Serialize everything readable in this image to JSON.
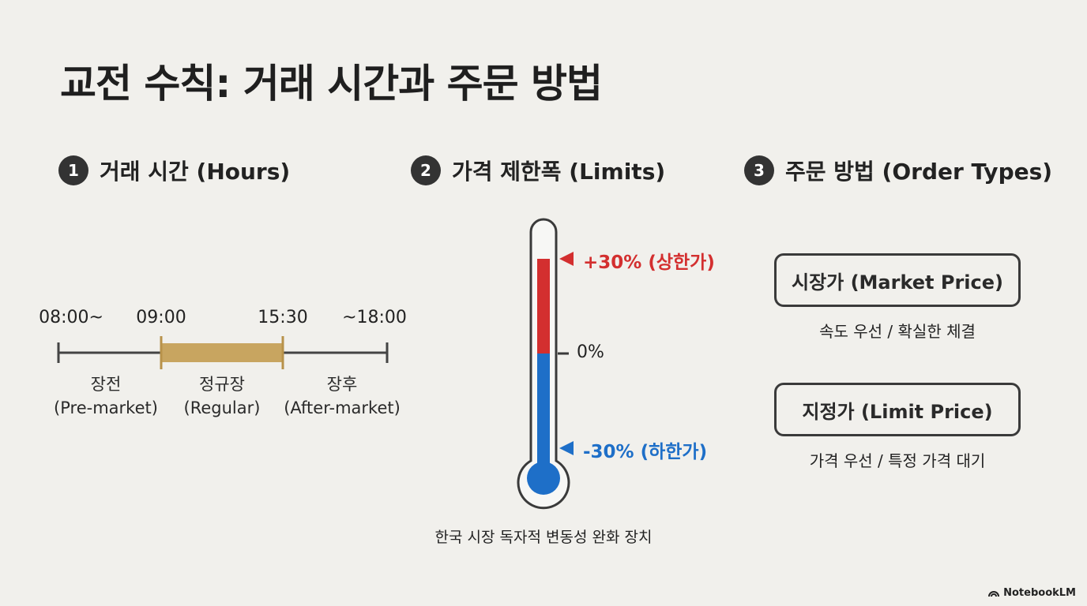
{
  "title": "교전 수칙: 거래 시간과 주문 방법",
  "sections": [
    {
      "number": "1",
      "label": "거래 시간 (Hours)"
    },
    {
      "number": "2",
      "label": "가격 제한폭 (Limits)"
    },
    {
      "number": "3",
      "label": "주문 방법 (Order Types)"
    }
  ],
  "timeline": {
    "times": [
      "08:00~",
      "09:00",
      "15:30",
      "~18:00"
    ],
    "segments": [
      {
        "name": "장전",
        "en": "(Pre-market)"
      },
      {
        "name": "정규장",
        "en": "(Regular)"
      },
      {
        "name": "장후",
        "en": "(After-market)"
      }
    ],
    "colors": {
      "line": "#444444",
      "regular": "#c8a560"
    }
  },
  "limits": {
    "upper": "+30% (상한가)",
    "zero": "0%",
    "lower": "-30% (하한가)",
    "caption": "한국 시장 독자적 변동성 완화 장치",
    "colors": {
      "upper": "#d32f2f",
      "lower": "#1e6fc8"
    }
  },
  "orders": [
    {
      "label": "시장가 (Market Price)",
      "desc": "속도 우선 / 확실한 체결"
    },
    {
      "label": "지정가 (Limit Price)",
      "desc": "가격 우선 / 특정 가격 대기"
    }
  ],
  "brand": "NotebookLM"
}
